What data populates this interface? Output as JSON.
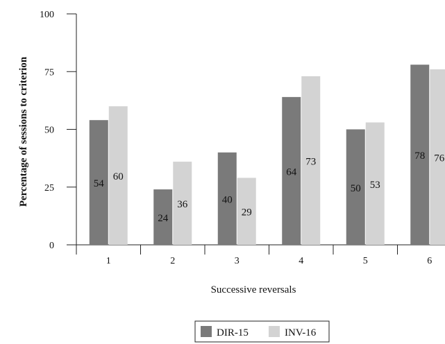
{
  "chart_data": {
    "type": "bar",
    "title": "",
    "xlabel": "Successive reversals",
    "ylabel": "Percentage of sessions to criterion",
    "categories": [
      "1",
      "2",
      "3",
      "4",
      "5",
      "6"
    ],
    "ylim": [
      0,
      100
    ],
    "yticks": [
      "0",
      "25",
      "50",
      "75",
      "100"
    ],
    "grid": false,
    "legend_position": "bottom-center",
    "series": [
      {
        "name": "DIR-15",
        "color": "#7a7a7a",
        "values": [
          54,
          24,
          40,
          64,
          50,
          78
        ]
      },
      {
        "name": "INV-16",
        "color": "#d3d3d3",
        "values": [
          60,
          36,
          29,
          73,
          53,
          76
        ]
      }
    ]
  }
}
